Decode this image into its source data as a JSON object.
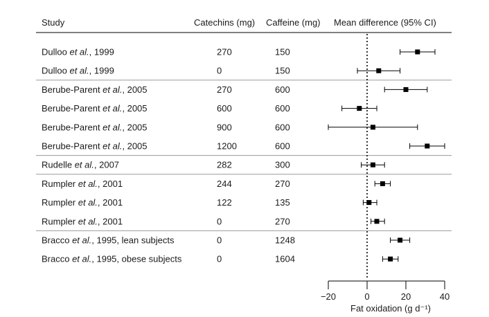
{
  "chart_data": {
    "type": "forest",
    "columns": {
      "study": "Study",
      "catechins": "Catechins (mg)",
      "caffeine": "Caffeine (mg)",
      "effect": "Mean difference (95% CI)"
    },
    "rows": [
      {
        "author": "Dulloo",
        "suffix": ", 1999",
        "catechins": "270",
        "caffeine": "150",
        "mean": 26,
        "lo": 17,
        "hi": 35
      },
      {
        "author": "Dulloo",
        "suffix": ", 1999",
        "catechins": "0",
        "caffeine": "150",
        "mean": 6,
        "lo": -5,
        "hi": 17
      },
      {
        "author": "Berube-Parent",
        "suffix": ", 2005",
        "catechins": "270",
        "caffeine": "600",
        "mean": 20,
        "lo": 9,
        "hi": 31
      },
      {
        "author": "Berube-Parent",
        "suffix": ", 2005",
        "catechins": "600",
        "caffeine": "600",
        "mean": -4,
        "lo": -13,
        "hi": 5
      },
      {
        "author": "Berube-Parent",
        "suffix": ", 2005",
        "catechins": "900",
        "caffeine": "600",
        "mean": 3,
        "lo": -20,
        "hi": 26
      },
      {
        "author": "Berube-Parent",
        "suffix": ", 2005",
        "catechins": "1200",
        "caffeine": "600",
        "mean": 31,
        "lo": 22,
        "hi": 40
      },
      {
        "author": "Rudelle",
        "suffix": ", 2007",
        "catechins": "282",
        "caffeine": "300",
        "mean": 3,
        "lo": -3,
        "hi": 9
      },
      {
        "author": "Rumpler",
        "suffix": ", 2001",
        "catechins": "244",
        "caffeine": "270",
        "mean": 8,
        "lo": 4,
        "hi": 12
      },
      {
        "author": "Rumpler",
        "suffix": ", 2001",
        "catechins": "122",
        "caffeine": "135",
        "mean": 1,
        "lo": -2,
        "hi": 5
      },
      {
        "author": "Rumpler",
        "suffix": ", 2001",
        "catechins": "0",
        "caffeine": "270",
        "mean": 5,
        "lo": 2,
        "hi": 9
      },
      {
        "author": "Bracco",
        "suffix": ", 1995, lean subjects",
        "catechins": "0",
        "caffeine": "1248",
        "mean": 17,
        "lo": 12,
        "hi": 22
      },
      {
        "author": "Bracco",
        "suffix": ", 1995, obese subjects",
        "catechins": "0",
        "caffeine": "1604",
        "mean": 12,
        "lo": 8,
        "hi": 16
      }
    ],
    "etal": "et al.",
    "group_separators_after_row": [
      1,
      5,
      6,
      9
    ],
    "xlim": [
      -20,
      40
    ],
    "x_ticks": [
      -20,
      0,
      20,
      40
    ],
    "x_tick_labels": [
      "−20",
      "0",
      "20",
      "40"
    ],
    "xlabel": "Fat oxidation (g d⁻¹)",
    "reference_line": 0
  }
}
